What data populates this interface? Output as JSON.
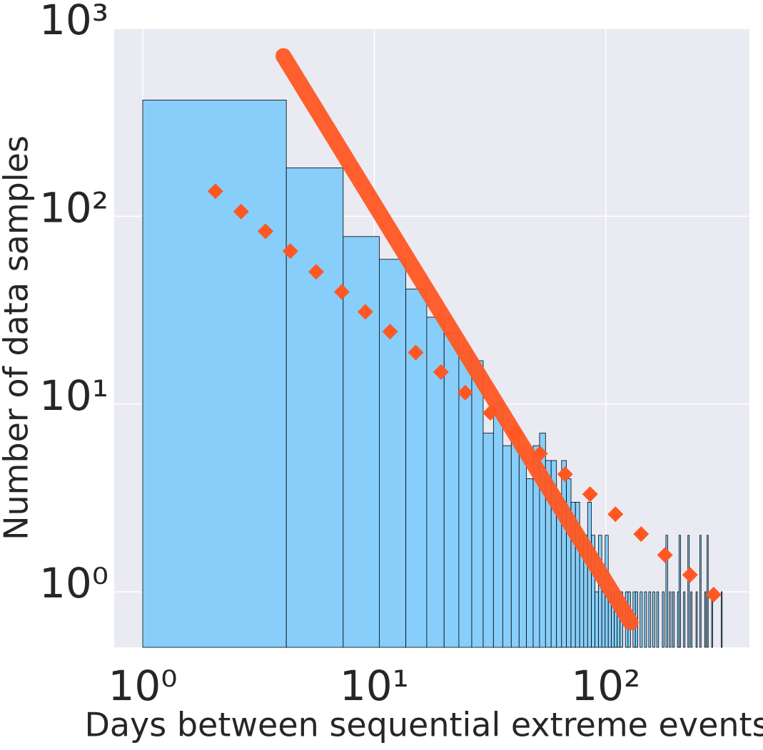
{
  "chart_data": {
    "type": "histogram",
    "xlabel": "Days between sequential extreme events",
    "ylabel": "Number of data samples",
    "xscale": "log",
    "yscale": "log",
    "grid": true,
    "color": "#87cefa",
    "edgecolor": "#000000",
    "bins": [
      1,
      4.17,
      7.34,
      10.51,
      13.68,
      16.85,
      20.02,
      23.19,
      26.36,
      29.53,
      32.7,
      35.87,
      39.04,
      42.21,
      45.38,
      48.55,
      51.72,
      54.89,
      58.06,
      61.23,
      64.4,
      67.57,
      70.74,
      73.91,
      77.08,
      80.25,
      83.42,
      86.59,
      89.76,
      92.93,
      96.1,
      99.27,
      102.44,
      105.61,
      108.78,
      111.95,
      115.12,
      118.29,
      121.46,
      124.63,
      127.8,
      130.97,
      134.14,
      137.31,
      140.48,
      143.65,
      146.82,
      149.99,
      153.16,
      156.33,
      159.5,
      162.67,
      165.84,
      169.01,
      172.18,
      175.35,
      178.52,
      181.69,
      184.86,
      188.03,
      191.2,
      194.37,
      197.54,
      200.71,
      203.88,
      207.05,
      210.22,
      213.39,
      216.56,
      219.73,
      222.9,
      226.07,
      229.24,
      232.41,
      235.58,
      238.75,
      241.92,
      245.09,
      248.26,
      251.43,
      254.6,
      257.77,
      260.94,
      264.11,
      267.28,
      270.45,
      273.62,
      276.79,
      279.96,
      283.13,
      286.3,
      289.47,
      292.64,
      295.81,
      298.98,
      302.15,
      305.32,
      308.49,
      311.66,
      314.83,
      318
    ],
    "values": [
      416,
      181,
      78,
      59,
      41,
      29,
      24,
      19,
      17,
      7,
      10,
      6,
      7,
      6,
      4,
      6,
      7,
      5,
      5,
      3,
      5,
      4,
      3,
      3,
      2,
      2,
      3,
      2,
      1,
      2,
      1,
      2,
      1,
      1,
      1,
      1,
      1,
      0,
      1,
      1,
      0,
      1,
      1,
      0,
      1,
      0,
      1,
      0,
      1,
      0,
      1,
      0,
      1,
      0,
      0,
      1,
      0,
      2,
      0,
      1,
      0,
      1,
      0,
      0,
      1,
      2,
      0,
      0,
      1,
      0,
      0,
      2,
      0,
      1,
      0,
      0,
      0,
      1,
      0,
      0,
      2,
      0,
      0,
      0,
      1,
      0,
      2,
      0,
      0,
      0,
      1,
      0,
      0,
      0,
      0,
      0,
      0,
      0,
      0,
      1
    ],
    "overlays": [
      {
        "type": "line",
        "color": "#ff5722",
        "x": [
          4.05,
          128
        ],
        "values": [
          714,
          0.687
        ]
      },
      {
        "type": "scatter",
        "marker": "diamond",
        "color": "#ff5722",
        "x": [
          2.06,
          2.66,
          3.39,
          4.34,
          5.61,
          7.24,
          9.15,
          11.7,
          15.1,
          19.4,
          24.7,
          31.7,
          40.6,
          52.0,
          66.7,
          85.5,
          110,
          142,
          180,
          231,
          292
        ],
        "values": [
          136,
          106,
          83.2,
          65.2,
          50.6,
          39.6,
          31.0,
          24.3,
          18.8,
          14.8,
          11.5,
          8.97,
          7.02,
          5.45,
          4.23,
          3.31,
          2.59,
          2.03,
          1.57,
          1.23,
          0.966
        ]
      }
    ],
    "xlim": [
      0.753,
      417
    ],
    "ylim": [
      0.506,
      1000
    ],
    "xticks": [
      {
        "value": 1,
        "label": "10⁰"
      },
      {
        "value": 10,
        "label": "10¹"
      },
      {
        "value": 100,
        "label": "10²"
      }
    ],
    "yticks": [
      {
        "value": 1,
        "label": "10⁰"
      },
      {
        "value": 10,
        "label": "10¹"
      },
      {
        "value": 100,
        "label": "10²"
      },
      {
        "value": 1000,
        "label": "10³"
      }
    ]
  }
}
